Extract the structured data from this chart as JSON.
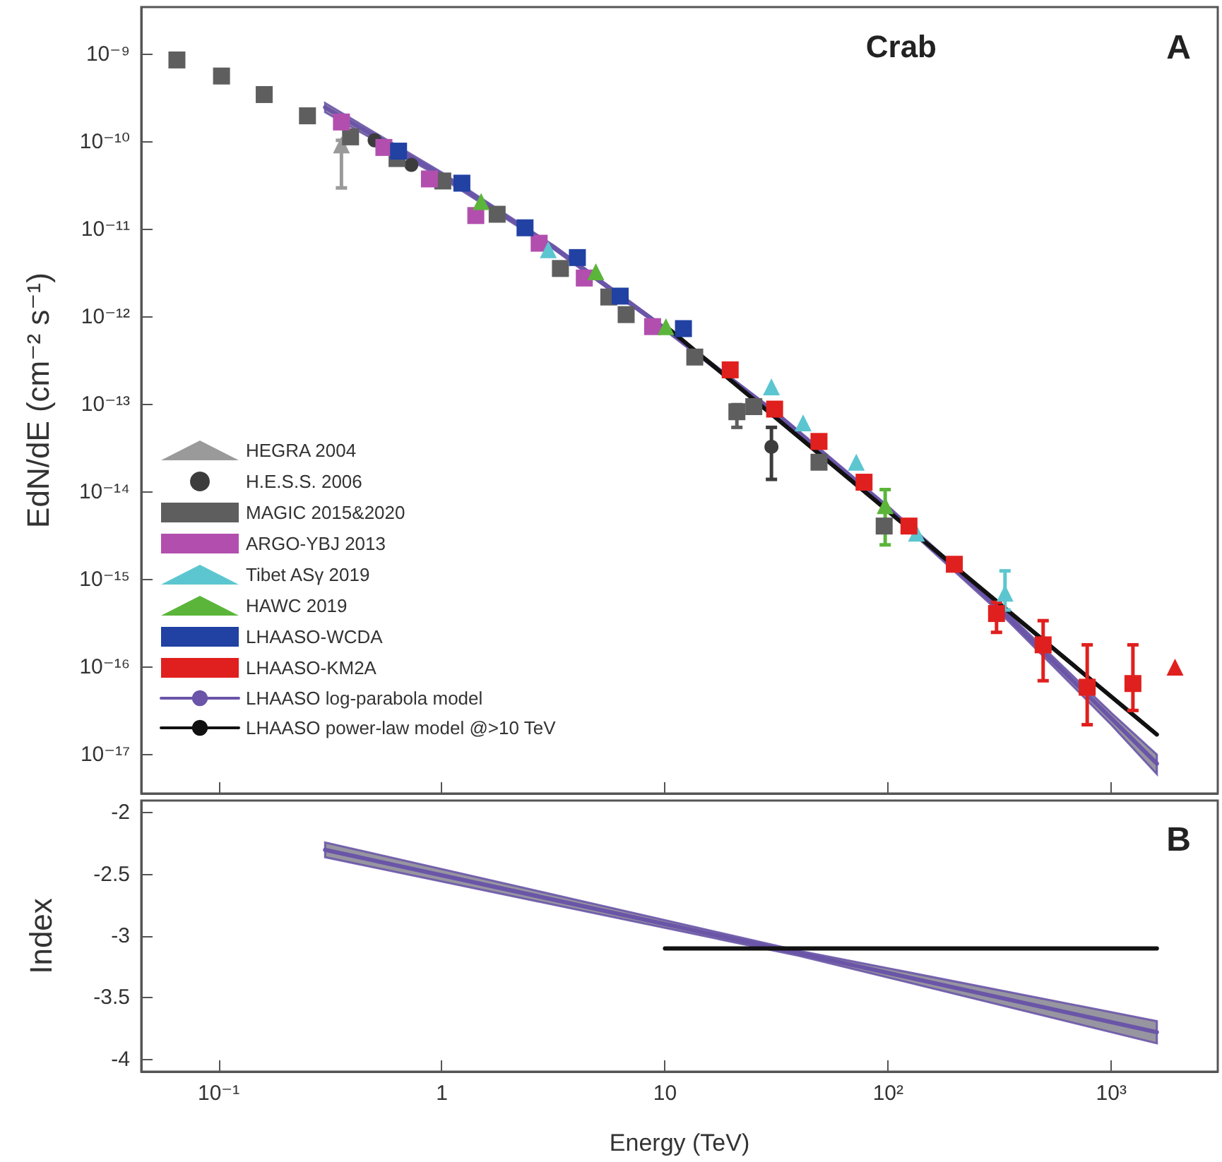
{
  "chart_data": [
    {
      "type": "scatter",
      "ylabel": "EdN/dE (cm⁻² s⁻¹)",
      "annotations": [
        "Crab",
        "A"
      ],
      "log": "xy",
      "tick_labels": "y",
      "legend": "bottom left",
      "xlim": [
        0.045,
        3000
      ],
      "ylim": [
        3.6e-18,
        3.5e-09
      ],
      "xticks": [
        {
          "value": 0.1,
          "label": null
        },
        {
          "value": 1,
          "label": null
        },
        {
          "value": 10,
          "label": null
        },
        {
          "value": 100,
          "label": null
        },
        {
          "value": 1000,
          "label": null
        }
      ],
      "yticks": [
        {
          "value": 1e-17,
          "label": "10⁻¹⁷"
        },
        {
          "value": 1e-16,
          "label": "10⁻¹⁶"
        },
        {
          "value": 1e-15,
          "label": "10⁻¹⁵"
        },
        {
          "value": 1e-14,
          "label": "10⁻¹⁴"
        },
        {
          "value": 1e-13,
          "label": "10⁻¹³"
        },
        {
          "value": 1e-12,
          "label": "10⁻¹²"
        },
        {
          "value": 1e-11,
          "label": "10⁻¹¹"
        },
        {
          "value": 1e-10,
          "label": "10⁻¹⁰"
        },
        {
          "value": 1e-09,
          "label": "10⁻⁹"
        }
      ],
      "series": [
        {
          "name": "HEGRA 2004",
          "color": "#9a9a9a",
          "marker": "triangle",
          "x": [
            0.355
          ],
          "values": [
            9.3e-11
          ],
          "errors": [
            [
              3e-11,
              1.05e-10
            ]
          ]
        },
        {
          "name": "H.E.S.S. 2006",
          "color": "#3c3c3c",
          "marker": "circle",
          "x": [
            0.5,
            0.73,
            30
          ],
          "values": [
            1.05e-10,
            5.5e-11,
            3.3e-14
          ],
          "errors": [
            null,
            null,
            [
              1.4e-14,
              5.5e-14
            ]
          ]
        },
        {
          "name": "MAGIC 2015&2020",
          "color": "#5e5e5e",
          "marker": "square",
          "x": [
            0.065,
            0.103,
            0.16,
            0.25,
            0.39,
            0.63,
            1.01,
            1.77,
            3.4,
            5.6,
            6.7,
            13.6,
            21,
            25,
            49,
            96
          ],
          "values": [
            8.7e-10,
            5.7e-10,
            3.5e-10,
            2e-10,
            1.15e-10,
            6.5e-11,
            3.6e-11,
            1.5e-11,
            3.6e-12,
            1.7e-12,
            1.07e-12,
            3.5e-13,
            8.3e-14,
            9.5e-14,
            2.2e-14,
            4.1e-15
          ],
          "errors": [
            null,
            null,
            null,
            null,
            null,
            null,
            null,
            null,
            null,
            null,
            null,
            null,
            [
              5.5e-14,
              1e-13
            ],
            null,
            null,
            null
          ]
        },
        {
          "name": "ARGO-YBJ 2013",
          "color": "#b24fae",
          "marker": "square",
          "x": [
            0.355,
            0.55,
            0.88,
            1.42,
            2.73,
            4.35,
            8.8
          ],
          "values": [
            1.7e-10,
            8.7e-11,
            3.8e-11,
            1.45e-11,
            7e-12,
            2.8e-12,
            7.8e-13
          ]
        },
        {
          "name": "Tibet ASγ 2019",
          "color": "#5cc6d0",
          "marker": "triangle",
          "x": [
            3.0,
            30,
            41.6,
            72,
            134,
            334
          ],
          "values": [
            5.9e-12,
            1.6e-13,
            6.2e-14,
            2.2e-14,
            3.4e-15,
            7e-16
          ],
          "errors": [
            null,
            null,
            null,
            null,
            null,
            [
              4.5e-16,
              1.26e-15
            ]
          ]
        },
        {
          "name": "HAWC 2019",
          "color": "#5bb53a",
          "marker": "triangle",
          "x": [
            1.5,
            4.9,
            10.1,
            97
          ],
          "values": [
            2.1e-11,
            3.3e-12,
            7.8e-13,
            7e-15
          ],
          "errors": [
            null,
            null,
            null,
            [
              2.5e-15,
              1.07e-14
            ]
          ]
        },
        {
          "name": "LHAASO-WCDA",
          "color": "#2141a3",
          "marker": "square",
          "x": [
            0.64,
            1.23,
            2.36,
            4.05,
            6.3,
            12.1
          ],
          "values": [
            7.9e-11,
            3.4e-11,
            1.05e-11,
            4.8e-12,
            1.74e-12,
            7.4e-13
          ]
        },
        {
          "name": "LHAASO-KM2A",
          "color": "#e0201e",
          "marker": "square",
          "x": [
            19.6,
            31,
            49,
            78,
            124,
            198,
            306,
            495,
            780,
            1250
          ],
          "values": [
            2.5e-13,
            8.9e-14,
            3.8e-14,
            1.3e-14,
            4.1e-15,
            1.5e-15,
            4.1e-16,
            1.8e-16,
            5.9e-17,
            6.5e-17
          ],
          "errors": [
            null,
            null,
            null,
            null,
            null,
            null,
            [
              2.5e-16,
              5.5e-16
            ],
            [
              7e-17,
              3.4e-16
            ],
            [
              2.2e-17,
              1.8e-16
            ],
            [
              3.2e-17,
              1.8e-16
            ]
          ]
        },
        {
          "color": "#e0201e",
          "marker": "triangle",
          "x": [
            1930
          ],
          "values": [
            1e-16
          ]
        },
        {
          "name": "LHAASO log-parabola model",
          "type": "line",
          "color": "#6a55a8",
          "x": [
            0.3,
            1,
            3.2,
            10,
            32,
            100,
            320,
            1000,
            1600
          ],
          "values": [
            2.5e-10,
            4.2e-11,
            6.2e-12,
            7.4e-13,
            7.6e-14,
            6.5e-15,
            4.5e-16,
            2.6e-17,
            7.9e-18
          ],
          "lower": [
            2.2e-10,
            3.9e-11,
            5.9e-12,
            7.1e-13,
            7.2e-14,
            6.1e-15,
            4.1e-16,
            2.2e-17,
            6e-18
          ],
          "upper": [
            2.8e-10,
            4.5e-11,
            6.5e-12,
            7.7e-13,
            8e-14,
            6.9e-15,
            4.9e-16,
            3e-17,
            1e-17
          ]
        },
        {
          "name": "LHAASO power-law model @>10 TeV",
          "type": "line",
          "color": "#111111",
          "x": [
            10,
            1600
          ],
          "values": [
            8e-13,
            1.7e-17
          ]
        }
      ]
    },
    {
      "type": "line",
      "xlabel": "Energy (TeV)",
      "ylabel": "Index",
      "annotations": [
        "B"
      ],
      "log": "x",
      "xlim": [
        0.045,
        3000
      ],
      "ylim": [
        -4.1,
        -1.9
      ],
      "xticks": [
        {
          "value": 0.1,
          "label": "10⁻¹"
        },
        1,
        10,
        {
          "value": 100,
          "label": "10²"
        },
        {
          "value": 1000,
          "label": "10³"
        }
      ],
      "yticks": [
        -4,
        -3.5,
        -3,
        -2.5,
        -2
      ],
      "series": [
        {
          "color": "#6a55a8",
          "x": [
            0.3,
            40,
            1600
          ],
          "values": [
            -2.3,
            -3.14,
            -3.78
          ],
          "lower": [
            -2.36,
            -3.16,
            -3.87
          ],
          "upper": [
            -2.24,
            -3.12,
            -3.69
          ]
        },
        {
          "color": "#111111",
          "x": [
            10,
            1600
          ],
          "values": [
            -3.1,
            -3.1
          ]
        }
      ]
    }
  ]
}
